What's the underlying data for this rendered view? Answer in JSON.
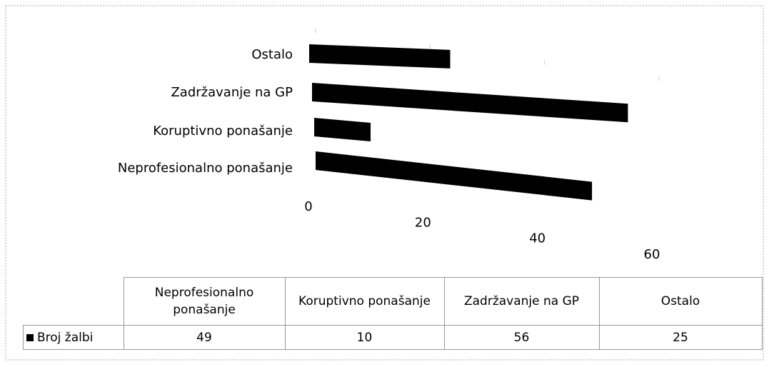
{
  "chart_data": {
    "type": "bar",
    "orientation": "horizontal",
    "categories": [
      "Neprofesionalno ponašanje",
      "Koruptivno ponašanje",
      "Zadržavanje na GP",
      "Ostalo"
    ],
    "series": [
      {
        "name": "Broj žalbi",
        "color": "#000000",
        "values": [
          49,
          10,
          56,
          25
        ]
      }
    ],
    "xlim": [
      0,
      60
    ],
    "xticks": [
      0,
      20,
      40,
      60
    ],
    "data_table": true
  }
}
